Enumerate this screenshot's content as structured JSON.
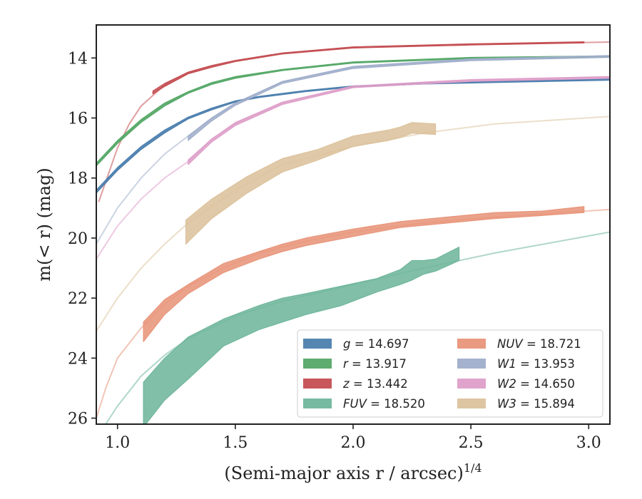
{
  "chart_data": {
    "type": "line",
    "xlabel": "(Semi-major axis r / arcsec)",
    "xlabel_exponent": "1/4",
    "ylabel": "m(< r) (mag)",
    "xlim": [
      0.91,
      3.09
    ],
    "ylim": [
      26.2,
      12.9
    ],
    "y_inverted": true,
    "xticks": [
      "1.0",
      "1.5",
      "2.0",
      "2.5",
      "3.0"
    ],
    "yticks": [
      "14",
      "16",
      "18",
      "20",
      "22",
      "24",
      "26"
    ],
    "grid": false,
    "legend_position": "lower-right",
    "series": [
      {
        "name": "g = 14.697",
        "band": "g",
        "total_mag": "14.697",
        "color": "#4c7fae",
        "model": [
          [
            0.91,
            18.45
          ],
          [
            1.0,
            17.7
          ],
          [
            1.1,
            17.0
          ],
          [
            1.2,
            16.45
          ],
          [
            1.3,
            16.0
          ],
          [
            1.4,
            15.7
          ],
          [
            1.5,
            15.45
          ],
          [
            1.6,
            15.3
          ],
          [
            1.8,
            15.1
          ],
          [
            2.0,
            14.95
          ],
          [
            2.3,
            14.85
          ],
          [
            2.6,
            14.8
          ],
          [
            3.09,
            14.72
          ]
        ],
        "data_x": [
          0.91,
          1.0,
          1.1,
          1.2,
          1.3,
          1.4,
          1.5,
          1.6,
          1.8,
          2.0,
          2.3,
          2.6,
          3.09
        ],
        "data_upper": [
          18.4,
          17.65,
          16.95,
          16.4,
          15.97,
          15.67,
          15.43,
          15.28,
          15.08,
          14.93,
          14.83,
          14.78,
          14.7
        ],
        "data_lower": [
          18.5,
          17.75,
          17.05,
          16.5,
          16.03,
          15.73,
          15.47,
          15.32,
          15.12,
          14.97,
          14.87,
          14.82,
          14.74
        ]
      },
      {
        "name": "r = 13.917",
        "band": "r",
        "total_mag": "13.917",
        "color": "#55a868",
        "model": [
          [
            0.91,
            17.55
          ],
          [
            1.0,
            16.8
          ],
          [
            1.1,
            16.1
          ],
          [
            1.2,
            15.55
          ],
          [
            1.3,
            15.15
          ],
          [
            1.4,
            14.85
          ],
          [
            1.5,
            14.65
          ],
          [
            1.7,
            14.4
          ],
          [
            2.0,
            14.15
          ],
          [
            2.5,
            14.0
          ],
          [
            3.09,
            13.95
          ]
        ],
        "data_x": [
          0.91,
          1.0,
          1.1,
          1.2,
          1.3,
          1.4,
          1.5,
          1.7,
          2.0,
          2.5,
          3.09
        ],
        "data_upper": [
          17.5,
          16.75,
          16.05,
          15.5,
          15.12,
          14.82,
          14.62,
          14.38,
          14.13,
          13.98,
          13.93
        ],
        "data_lower": [
          17.6,
          16.85,
          16.15,
          15.6,
          15.18,
          14.88,
          14.68,
          14.42,
          14.17,
          14.02,
          13.97
        ]
      },
      {
        "name": "z = 13.442",
        "band": "z",
        "total_mag": "13.442",
        "color": "#c44e52",
        "model": [
          [
            0.92,
            18.8
          ],
          [
            1.0,
            17.0
          ],
          [
            1.05,
            16.2
          ],
          [
            1.1,
            15.6
          ],
          [
            1.2,
            14.9
          ],
          [
            1.3,
            14.5
          ],
          [
            1.5,
            14.1
          ],
          [
            1.7,
            13.85
          ],
          [
            2.0,
            13.65
          ],
          [
            2.5,
            13.55
          ],
          [
            3.09,
            13.47
          ]
        ],
        "data_x": [
          1.15,
          1.2,
          1.3,
          1.4,
          1.5,
          1.7,
          2.0,
          2.5,
          2.98
        ],
        "data_upper": [
          15.1,
          14.85,
          14.47,
          14.25,
          14.08,
          13.83,
          13.63,
          13.53,
          13.46
        ],
        "data_lower": [
          15.2,
          14.95,
          14.53,
          14.31,
          14.12,
          13.87,
          13.67,
          13.57,
          13.5
        ]
      },
      {
        "name": "FUV = 18.520",
        "band": "FUV",
        "total_mag": "18.520",
        "color": "#6fb69c",
        "model": [
          [
            0.9,
            26.8
          ],
          [
            1.0,
            25.6
          ],
          [
            1.1,
            24.6
          ],
          [
            1.2,
            23.9
          ],
          [
            1.3,
            23.35
          ],
          [
            1.5,
            22.6
          ],
          [
            1.7,
            22.1
          ],
          [
            2.0,
            21.55
          ],
          [
            2.3,
            21.0
          ],
          [
            2.6,
            20.5
          ],
          [
            3.09,
            19.8
          ]
        ],
        "data_x": [
          1.11,
          1.2,
          1.3,
          1.45,
          1.6,
          1.7,
          1.8,
          1.95,
          2.1,
          2.2,
          2.25,
          2.3,
          2.35,
          2.45
        ],
        "data_upper": [
          24.8,
          24.0,
          23.3,
          22.7,
          22.25,
          22.0,
          21.85,
          21.6,
          21.35,
          21.05,
          20.75,
          20.75,
          20.7,
          20.3
        ],
        "data_lower": [
          26.3,
          25.4,
          24.7,
          23.6,
          23.05,
          22.8,
          22.55,
          22.25,
          21.8,
          21.55,
          21.4,
          21.2,
          21.1,
          20.75
        ]
      },
      {
        "name": "NUV = 18.721",
        "band": "NUV",
        "total_mag": "18.721",
        "color": "#e8957a",
        "model": [
          [
            0.91,
            26.0
          ],
          [
            0.95,
            25.0
          ],
          [
            1.0,
            24.0
          ],
          [
            1.1,
            23.0
          ],
          [
            1.2,
            22.2
          ],
          [
            1.3,
            21.6
          ],
          [
            1.45,
            21.0
          ],
          [
            1.6,
            20.5
          ],
          [
            1.8,
            20.1
          ],
          [
            2.0,
            19.8
          ],
          [
            2.3,
            19.5
          ],
          [
            2.6,
            19.3
          ],
          [
            3.09,
            19.05
          ]
        ],
        "data_x": [
          1.11,
          1.2,
          1.3,
          1.45,
          1.6,
          1.7,
          1.8,
          2.0,
          2.2,
          2.4,
          2.6,
          2.8,
          2.98
        ],
        "data_upper": [
          22.8,
          22.05,
          21.55,
          20.85,
          20.45,
          20.2,
          20.0,
          19.7,
          19.45,
          19.3,
          19.15,
          19.1,
          18.95
        ],
        "data_lower": [
          23.45,
          22.55,
          21.85,
          21.15,
          20.7,
          20.45,
          20.25,
          19.95,
          19.65,
          19.5,
          19.35,
          19.25,
          19.15
        ]
      },
      {
        "name": "W1 = 13.953",
        "band": "W1",
        "total_mag": "13.953",
        "color": "#a0aecb",
        "model": [
          [
            0.91,
            20.2
          ],
          [
            1.0,
            19.0
          ],
          [
            1.1,
            18.0
          ],
          [
            1.2,
            17.2
          ],
          [
            1.3,
            16.6
          ],
          [
            1.4,
            16.0
          ],
          [
            1.5,
            15.5
          ],
          [
            1.7,
            14.8
          ],
          [
            2.0,
            14.3
          ],
          [
            2.5,
            14.05
          ],
          [
            3.09,
            13.95
          ]
        ],
        "data_x": [
          1.3,
          1.4,
          1.5,
          1.7,
          2.0,
          2.5,
          3.09
        ],
        "data_upper": [
          16.6,
          16.0,
          15.5,
          14.78,
          14.28,
          14.03,
          13.92
        ],
        "data_lower": [
          16.75,
          16.1,
          15.58,
          14.85,
          14.35,
          14.09,
          13.98
        ]
      },
      {
        "name": "W2 = 14.650",
        "band": "W2",
        "total_mag": "14.650",
        "color": "#de9fc9",
        "model": [
          [
            0.91,
            20.7
          ],
          [
            1.0,
            19.6
          ],
          [
            1.1,
            18.7
          ],
          [
            1.2,
            18.0
          ],
          [
            1.3,
            17.45
          ],
          [
            1.4,
            16.7
          ],
          [
            1.5,
            16.2
          ],
          [
            1.7,
            15.5
          ],
          [
            2.0,
            14.95
          ],
          [
            2.5,
            14.75
          ],
          [
            3.09,
            14.65
          ]
        ],
        "data_x": [
          1.3,
          1.4,
          1.5,
          1.7,
          2.0,
          2.5,
          3.09
        ],
        "data_upper": [
          17.4,
          16.7,
          16.15,
          15.47,
          14.93,
          14.72,
          14.62
        ],
        "data_lower": [
          17.55,
          16.8,
          16.25,
          15.55,
          14.99,
          14.78,
          14.68
        ]
      },
      {
        "name": "W3 = 15.894",
        "band": "W3",
        "total_mag": "15.894",
        "color": "#dcc29c",
        "model": [
          [
            0.91,
            23.1
          ],
          [
            1.0,
            22.0
          ],
          [
            1.1,
            21.0
          ],
          [
            1.2,
            20.2
          ],
          [
            1.3,
            19.5
          ],
          [
            1.5,
            18.4
          ],
          [
            1.7,
            17.55
          ],
          [
            2.0,
            16.95
          ],
          [
            2.3,
            16.5
          ],
          [
            2.6,
            16.2
          ],
          [
            3.09,
            15.95
          ]
        ],
        "data_x": [
          1.29,
          1.4,
          1.55,
          1.7,
          1.85,
          2.0,
          2.15,
          2.2,
          2.25,
          2.35
        ],
        "data_upper": [
          19.4,
          18.7,
          17.95,
          17.35,
          17.05,
          16.6,
          16.4,
          16.3,
          16.15,
          16.2
        ],
        "data_lower": [
          20.2,
          19.35,
          18.5,
          17.8,
          17.4,
          16.95,
          16.75,
          16.65,
          16.5,
          16.55
        ]
      }
    ],
    "legend": {
      "left": [
        "g",
        "r",
        "z",
        "FUV"
      ],
      "right": [
        "NUV",
        "W1",
        "W2",
        "W3"
      ]
    }
  }
}
